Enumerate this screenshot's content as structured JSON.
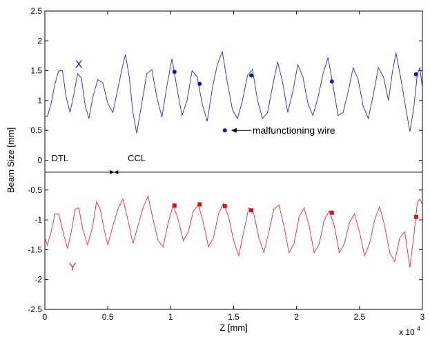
{
  "chart_data": {
    "type": "line",
    "title": "",
    "xlabel": "Z [mm]",
    "ylabel": "Beam Size [mm]",
    "x_multiplier_label": "x 10",
    "x_multiplier_exp": "4",
    "xlim": [
      0,
      3
    ],
    "ylim": [
      -2.5,
      2.5
    ],
    "xticks": [
      {
        "v": 0,
        "label": "0"
      },
      {
        "v": 0.5,
        "label": "0.5"
      },
      {
        "v": 1,
        "label": "1"
      },
      {
        "v": 1.5,
        "label": "1.5"
      },
      {
        "v": 2,
        "label": "2"
      },
      {
        "v": 2.5,
        "label": "2.5"
      },
      {
        "v": 3,
        "label": "3"
      }
    ],
    "yticks": [
      {
        "v": -2.5,
        "label": "-2.5"
      },
      {
        "v": -2,
        "label": "-2"
      },
      {
        "v": -1.5,
        "label": "-1.5"
      },
      {
        "v": -1,
        "label": "-1"
      },
      {
        "v": -0.5,
        "label": "-0.5"
      },
      {
        "v": 0,
        "label": "0"
      },
      {
        "v": 0.5,
        "label": "0.5"
      },
      {
        "v": 1,
        "label": "1"
      },
      {
        "v": 1.5,
        "label": "1.5"
      },
      {
        "v": 2,
        "label": "2"
      },
      {
        "v": 2.5,
        "label": "2.5"
      }
    ],
    "separator_y": -0.2,
    "series": [
      {
        "key": "x",
        "label": "X",
        "color": "#3a3ab0",
        "label_pos": {
          "x": 0.27,
          "y": 1.55
        },
        "line": [
          [
            0.0,
            0.75
          ],
          [
            0.02,
            0.73
          ],
          [
            0.05,
            0.95
          ],
          [
            0.08,
            1.28
          ],
          [
            0.11,
            1.5
          ],
          [
            0.14,
            1.5
          ],
          [
            0.17,
            1.05
          ],
          [
            0.2,
            0.8
          ],
          [
            0.23,
            1.1
          ],
          [
            0.26,
            1.45
          ],
          [
            0.29,
            1.38
          ],
          [
            0.32,
            0.92
          ],
          [
            0.35,
            0.7
          ],
          [
            0.38,
            1.05
          ],
          [
            0.42,
            1.35
          ],
          [
            0.46,
            1.3
          ],
          [
            0.5,
            0.95
          ],
          [
            0.54,
            0.8
          ],
          [
            0.58,
            1.2
          ],
          [
            0.62,
            1.6
          ],
          [
            0.64,
            1.77
          ],
          [
            0.67,
            1.4
          ],
          [
            0.7,
            0.8
          ],
          [
            0.73,
            0.45
          ],
          [
            0.77,
            0.95
          ],
          [
            0.81,
            1.45
          ],
          [
            0.85,
            1.52
          ],
          [
            0.89,
            1.05
          ],
          [
            0.93,
            0.72
          ],
          [
            0.97,
            1.25
          ],
          [
            1.01,
            1.7
          ],
          [
            1.05,
            1.2
          ],
          [
            1.09,
            0.75
          ],
          [
            1.13,
            1.0
          ],
          [
            1.17,
            1.5
          ],
          [
            1.21,
            1.4
          ],
          [
            1.25,
            0.95
          ],
          [
            1.29,
            0.65
          ],
          [
            1.33,
            1.2
          ],
          [
            1.37,
            1.6
          ],
          [
            1.41,
            1.82
          ],
          [
            1.45,
            1.3
          ],
          [
            1.49,
            0.85
          ],
          [
            1.53,
            0.7
          ],
          [
            1.57,
            1.0
          ],
          [
            1.61,
            1.42
          ],
          [
            1.65,
            1.52
          ],
          [
            1.69,
            1.0
          ],
          [
            1.73,
            0.7
          ],
          [
            1.77,
            0.8
          ],
          [
            1.81,
            1.25
          ],
          [
            1.85,
            1.65
          ],
          [
            1.89,
            1.3
          ],
          [
            1.93,
            0.8
          ],
          [
            1.97,
            1.15
          ],
          [
            2.01,
            1.6
          ],
          [
            2.05,
            1.4
          ],
          [
            2.09,
            0.95
          ],
          [
            2.13,
            0.75
          ],
          [
            2.17,
            1.05
          ],
          [
            2.21,
            1.45
          ],
          [
            2.25,
            1.72
          ],
          [
            2.29,
            1.25
          ],
          [
            2.33,
            0.75
          ],
          [
            2.37,
            0.8
          ],
          [
            2.41,
            1.15
          ],
          [
            2.45,
            1.55
          ],
          [
            2.49,
            1.35
          ],
          [
            2.53,
            0.9
          ],
          [
            2.57,
            0.7
          ],
          [
            2.61,
            1.1
          ],
          [
            2.65,
            1.55
          ],
          [
            2.69,
            1.4
          ],
          [
            2.73,
            1.0
          ],
          [
            2.76,
            1.45
          ],
          [
            2.79,
            1.8
          ],
          [
            2.83,
            1.35
          ],
          [
            2.87,
            0.85
          ],
          [
            2.9,
            0.48
          ],
          [
            2.93,
            0.85
          ],
          [
            2.96,
            1.45
          ],
          [
            2.98,
            1.55
          ],
          [
            3.0,
            1.2
          ]
        ],
        "markers": [
          [
            1.03,
            1.48
          ],
          [
            1.23,
            1.28
          ],
          [
            1.64,
            1.42
          ],
          [
            2.28,
            1.32
          ],
          [
            2.95,
            1.44
          ]
        ]
      },
      {
        "key": "y",
        "label": "Y",
        "color": "#d94040",
        "label_pos": {
          "x": 0.22,
          "y": -1.85
        },
        "line": [
          [
            0.0,
            -1.3
          ],
          [
            0.02,
            -1.42
          ],
          [
            0.05,
            -1.2
          ],
          [
            0.08,
            -0.9
          ],
          [
            0.11,
            -0.9
          ],
          [
            0.15,
            -1.25
          ],
          [
            0.18,
            -1.48
          ],
          [
            0.21,
            -1.2
          ],
          [
            0.24,
            -0.82
          ],
          [
            0.27,
            -0.8
          ],
          [
            0.3,
            -1.15
          ],
          [
            0.34,
            -1.42
          ],
          [
            0.38,
            -1.1
          ],
          [
            0.41,
            -0.7
          ],
          [
            0.44,
            -0.82
          ],
          [
            0.47,
            -1.15
          ],
          [
            0.5,
            -1.42
          ],
          [
            0.54,
            -1.1
          ],
          [
            0.58,
            -0.82
          ],
          [
            0.62,
            -0.65
          ],
          [
            0.66,
            -1.0
          ],
          [
            0.7,
            -1.4
          ],
          [
            0.74,
            -1.1
          ],
          [
            0.78,
            -0.8
          ],
          [
            0.82,
            -0.6
          ],
          [
            0.86,
            -1.0
          ],
          [
            0.9,
            -1.35
          ],
          [
            0.94,
            -1.45
          ],
          [
            0.98,
            -1.05
          ],
          [
            1.02,
            -0.75
          ],
          [
            1.06,
            -1.0
          ],
          [
            1.1,
            -1.35
          ],
          [
            1.14,
            -1.2
          ],
          [
            1.18,
            -0.85
          ],
          [
            1.22,
            -0.75
          ],
          [
            1.26,
            -1.05
          ],
          [
            1.3,
            -1.45
          ],
          [
            1.34,
            -1.3
          ],
          [
            1.38,
            -0.9
          ],
          [
            1.42,
            -0.72
          ],
          [
            1.46,
            -0.95
          ],
          [
            1.5,
            -1.35
          ],
          [
            1.54,
            -1.6
          ],
          [
            1.58,
            -1.2
          ],
          [
            1.62,
            -0.8
          ],
          [
            1.66,
            -0.9
          ],
          [
            1.7,
            -1.3
          ],
          [
            1.74,
            -1.55
          ],
          [
            1.78,
            -1.2
          ],
          [
            1.82,
            -0.82
          ],
          [
            1.86,
            -0.75
          ],
          [
            1.9,
            -1.1
          ],
          [
            1.94,
            -1.55
          ],
          [
            1.98,
            -1.4
          ],
          [
            2.02,
            -0.95
          ],
          [
            2.06,
            -0.8
          ],
          [
            2.1,
            -1.1
          ],
          [
            2.14,
            -1.55
          ],
          [
            2.18,
            -1.4
          ],
          [
            2.22,
            -1.0
          ],
          [
            2.26,
            -0.85
          ],
          [
            2.3,
            -1.1
          ],
          [
            2.34,
            -1.55
          ],
          [
            2.38,
            -1.4
          ],
          [
            2.42,
            -1.05
          ],
          [
            2.46,
            -0.9
          ],
          [
            2.5,
            -1.2
          ],
          [
            2.54,
            -1.6
          ],
          [
            2.58,
            -1.4
          ],
          [
            2.62,
            -1.0
          ],
          [
            2.66,
            -0.78
          ],
          [
            2.7,
            -1.1
          ],
          [
            2.74,
            -1.55
          ],
          [
            2.78,
            -1.7
          ],
          [
            2.82,
            -1.3
          ],
          [
            2.86,
            -1.2
          ],
          [
            2.9,
            -1.8
          ],
          [
            2.93,
            -1.3
          ],
          [
            2.96,
            -0.7
          ],
          [
            2.98,
            -0.65
          ],
          [
            3.0,
            -0.75
          ]
        ],
        "markers": [
          [
            1.03,
            -0.76
          ],
          [
            1.23,
            -0.74
          ],
          [
            1.43,
            -0.77
          ],
          [
            1.64,
            -0.84
          ],
          [
            2.28,
            -0.88
          ],
          [
            2.95,
            -0.95
          ]
        ]
      }
    ],
    "annotations": {
      "dtl": {
        "text": "DTL",
        "x": 0.12,
        "y": -0.02
      },
      "ccl": {
        "text": "CCL",
        "x": 0.73,
        "y": -0.02
      },
      "boundary_x": 0.55,
      "legend_marker": {
        "x": 1.43,
        "y": 0.5
      },
      "legend_text": "malfunctioning wire",
      "legend_text_pos": {
        "x": 1.65,
        "y": 0.5
      },
      "arrow_from": {
        "x": 1.64,
        "y": 0.5
      },
      "arrow_to": {
        "x": 1.48,
        "y": 0.5
      }
    }
  }
}
